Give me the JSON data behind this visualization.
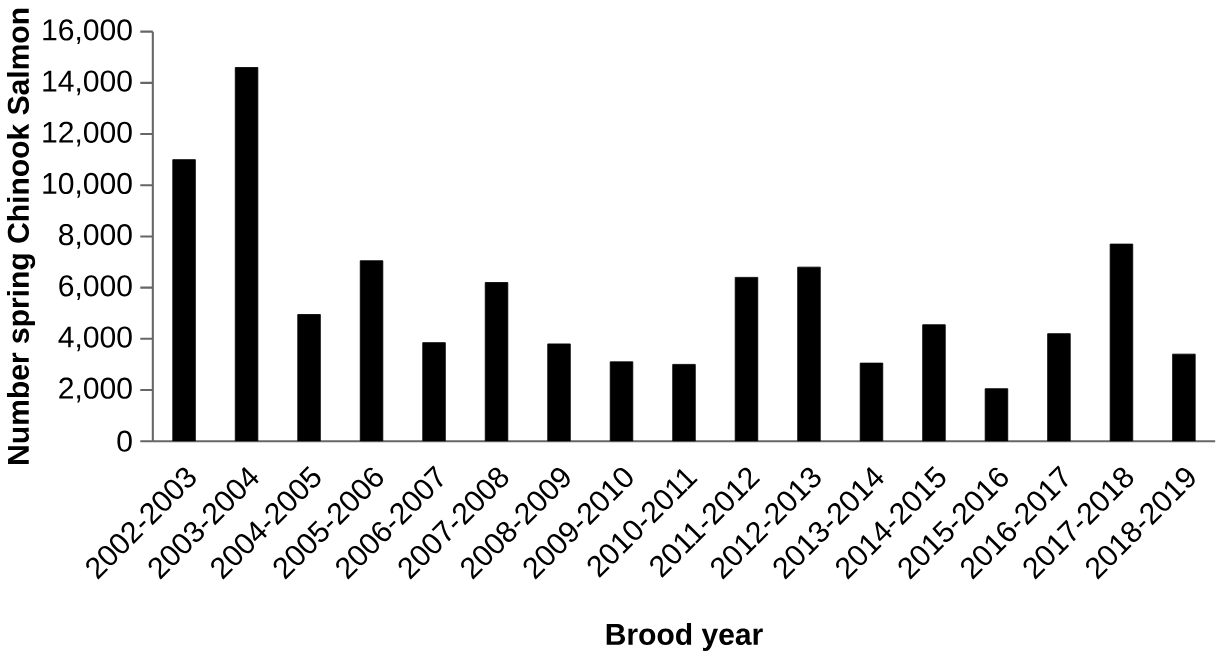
{
  "chart_data": {
    "type": "bar",
    "xlabel": "Brood year",
    "ylabel": "Number spring Chinook Salmon",
    "categories": [
      "2002-2003",
      "2003-2004",
      "2004-2005",
      "2005-2006",
      "2006-2007",
      "2007-2008",
      "2008-2009",
      "2009-2010",
      "2010-2011",
      "2011-2012",
      "2012-2013",
      "2013-2014",
      "2014-2015",
      "2015-2016",
      "2016-2017",
      "2017-2018",
      "2018-2019"
    ],
    "values": [
      11000,
      14600,
      4950,
      7050,
      3850,
      6200,
      3800,
      3100,
      3000,
      6400,
      6800,
      3050,
      4550,
      2050,
      4200,
      7700,
      3400
    ],
    "color": "#000000",
    "ylim": [
      0,
      16000
    ],
    "yticks": [
      0,
      {
        "value": 2000,
        "label": "2,000"
      },
      {
        "value": 4000,
        "label": "4,000"
      },
      {
        "value": 6000,
        "label": "6,000"
      },
      {
        "value": 8000,
        "label": "8,000"
      },
      {
        "value": 10000,
        "label": "10,000"
      },
      {
        "value": 12000,
        "label": "12,000"
      },
      {
        "value": 14000,
        "label": "14,000"
      },
      {
        "value": 16000,
        "label": "16,000"
      }
    ]
  }
}
